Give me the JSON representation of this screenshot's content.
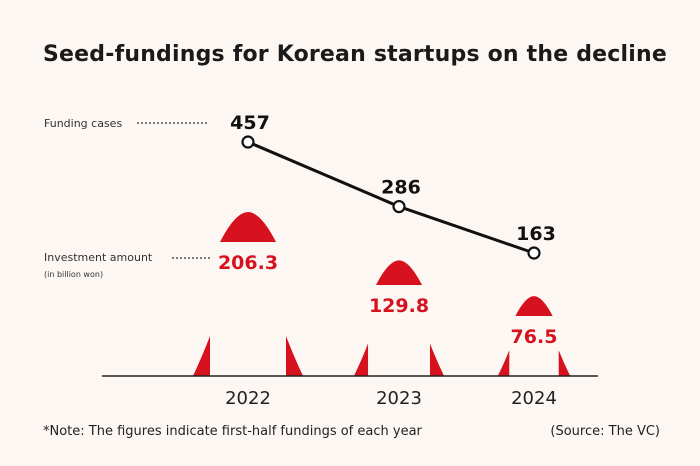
{
  "title": "Seed-fundings for Korean startups on the decline",
  "legend": {
    "cases_label": "Funding cases",
    "amount_label": "Investment amount",
    "amount_unit": "(in billion won)"
  },
  "colors": {
    "accent": "#d6121f",
    "line": "#111111",
    "background": "#fdf7f4"
  },
  "chart_data": {
    "type": "line",
    "title": "Seed-fundings for Korean startups on the decline",
    "categories": [
      "2022",
      "2023",
      "2024"
    ],
    "series": [
      {
        "name": "Funding cases",
        "values": [
          457,
          286,
          163
        ]
      },
      {
        "name": "Investment amount",
        "values": [
          206.3,
          129.8,
          76.5
        ]
      }
    ],
    "grid": false
  },
  "note": "*Note: The figures indicate first-half fundings of each year",
  "source": "(Source: The VC)"
}
